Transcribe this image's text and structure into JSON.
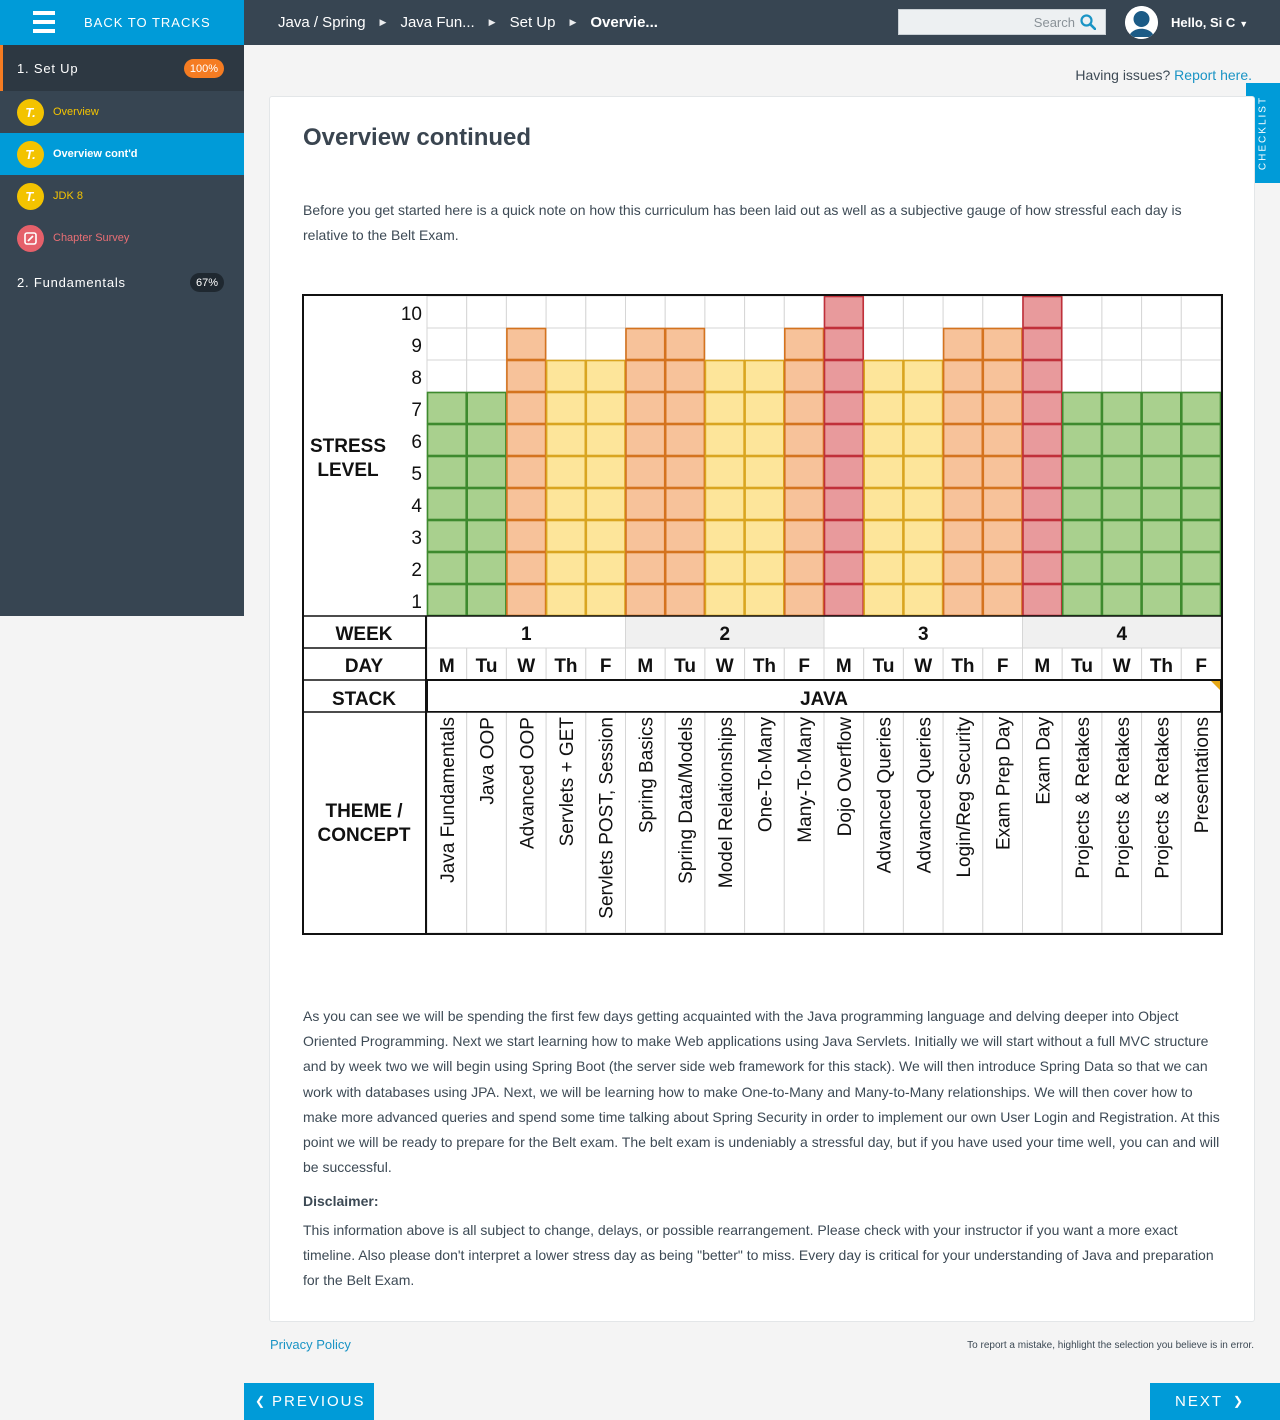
{
  "topbar": {
    "back_label": "BACK TO TRACKS",
    "breadcrumbs": [
      "Java / Spring",
      "Java Fun...",
      "Set Up",
      "Overvie..."
    ],
    "search_placeholder": "Search",
    "user_greeting": "Hello, Si C"
  },
  "sidebar": {
    "chapter1": {
      "label": "1. Set Up",
      "progress": "100%"
    },
    "items": [
      {
        "label": "Overview",
        "icon": "t-lesson-icon"
      },
      {
        "label": "Overview cont'd",
        "icon": "t-lesson-icon"
      },
      {
        "label": "JDK 8",
        "icon": "t-lesson-icon"
      },
      {
        "label": "Chapter Survey",
        "icon": "survey-icon"
      }
    ],
    "chapter2": {
      "label": "2. Fundamentals",
      "progress": "67%"
    }
  },
  "issues": {
    "text": "Having issues?",
    "link": "Report here."
  },
  "checklist_label": "CHECKLIST",
  "content": {
    "title": "Overview continued",
    "intro": "Before you get started here is a quick note on how this curriculum has been laid out as well as a subjective gauge of how stressful each day is relative to the Belt Exam.",
    "body1": "As you can see we will be spending the first few days getting acquainted with the Java programming language and delving deeper into Object Oriented Programming. Next we start learning how to make Web applications using Java Servlets. Initially we will start without a full MVC structure and by week two we will begin using Spring Boot (the server side web framework for this stack). We will then introduce Spring Data so that we can work with databases using JPA. Next, we will be learning how to make One-to-Many and Many-to-Many relationships. We will then cover how to make more advanced queries and spend some time talking about Spring Security in order to implement our own User Login and Registration. At this point we will be ready to prepare for the Belt exam. The belt exam is undeniably a stressful day, but if you have used your time well, you can and will be successful.",
    "disclaimer_label": "Disclaimer:",
    "body2": "This information above is all subject to change, delays, or possible rearrangement. Please check with your instructor if you want a more exact timeline. Also please don't interpret a lower stress day as being \"better\" to miss. Every day is critical for your understanding of Java and preparation for the Belt Exam."
  },
  "footer": {
    "privacy": "Privacy Policy",
    "mistake": "To report a mistake, highlight the selection you believe is in error.",
    "prev": "PREVIOUS",
    "next": "NEXT"
  },
  "chart_data": {
    "type": "heatmap",
    "title": "",
    "ylabel": "STRESS LEVEL",
    "ylim": [
      1,
      10
    ],
    "row_labels": {
      "week": "WEEK",
      "day": "DAY",
      "stack": "STACK",
      "theme": "THEME / CONCEPT"
    },
    "stack": "JAVA",
    "weeks": [
      "1",
      "2",
      "3",
      "4"
    ],
    "days": [
      "M",
      "Tu",
      "W",
      "Th",
      "F",
      "M",
      "Tu",
      "W",
      "Th",
      "F",
      "M",
      "Tu",
      "W",
      "Th",
      "F",
      "M",
      "Tu",
      "W",
      "Th",
      "F"
    ],
    "topics": [
      "Java Fundamentals",
      "Java OOP",
      "Advanced OOP",
      "Servlets + GET",
      "Servlets POST, Session",
      "Spring Basics",
      "Spring Data/Models",
      "Model Relationships",
      "One-To-Many",
      "Many-To-Many",
      "Dojo Overflow",
      "Advanced Queries",
      "Advanced Queries",
      "Login/Reg Security",
      "Exam Prep Day",
      "Exam Day",
      "Projects & Retakes",
      "Projects & Retakes",
      "Projects & Retakes",
      "Presentations"
    ],
    "stress": [
      7,
      7,
      9,
      8,
      8,
      9,
      9,
      8,
      8,
      9,
      10,
      8,
      8,
      9,
      9,
      10,
      7,
      7,
      7,
      7
    ],
    "colors": {
      "low": {
        "fill": "#a9d08e",
        "stroke": "#3e8a2e"
      },
      "medium": {
        "fill": "#fde59a",
        "stroke": "#d9a520"
      },
      "high": {
        "fill": "#f7c29a",
        "stroke": "#d4731f"
      },
      "critical": {
        "fill": "#e89a9c",
        "stroke": "#c0303a"
      }
    }
  }
}
